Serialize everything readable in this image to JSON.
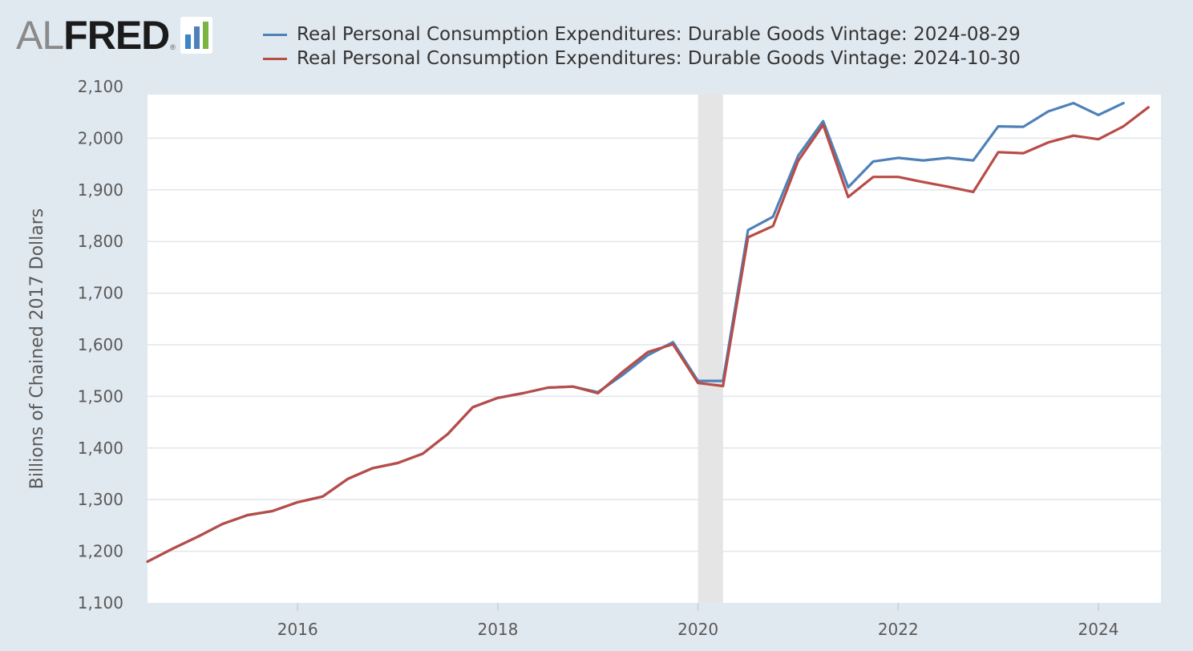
{
  "logo": {
    "al": "AL",
    "fred": "FRED",
    "reg": "®",
    "icon": "fred-bar-chart-icon"
  },
  "colors": {
    "background": "#e1e9f0",
    "plot_background": "#ffffff",
    "gridline": "#e1e5ea",
    "recession_band": "#e5e5e5",
    "series_1": "#4e81b8",
    "series_2": "#b84c47"
  },
  "chart_data": {
    "type": "line",
    "title": "",
    "xlabel": "",
    "ylabel": "Billions of Chained 2017 Dollars",
    "ylim": [
      1100,
      2100
    ],
    "xlim": [
      2014.5,
      2024.625
    ],
    "grid": true,
    "legend_position": "top",
    "y_ticks": [
      1100,
      1200,
      1300,
      1400,
      1500,
      1600,
      1700,
      1800,
      1900,
      2000,
      2100
    ],
    "y_tick_labels": [
      "1,100",
      "1,200",
      "1,300",
      "1,400",
      "1,500",
      "1,600",
      "1,700",
      "1,800",
      "1,900",
      "2,000",
      "2,100"
    ],
    "x_ticks": [
      2016,
      2018,
      2020,
      2022,
      2024
    ],
    "x_tick_labels": [
      "2016",
      "2018",
      "2020",
      "2022",
      "2024"
    ],
    "recession": {
      "start": 2020.0,
      "end": 2020.25
    },
    "series": [
      {
        "name": "Real Personal Consumption Expenditures: Durable Goods Vintage: 2024-08-29",
        "color": "#4e81b8",
        "x": [
          2014.5,
          2014.75,
          2015.0,
          2015.25,
          2015.5,
          2015.75,
          2016.0,
          2016.25,
          2016.5,
          2016.75,
          2017.0,
          2017.25,
          2017.5,
          2017.75,
          2018.0,
          2018.25,
          2018.5,
          2018.75,
          2019.0,
          2019.25,
          2019.5,
          2019.75,
          2020.0,
          2020.25,
          2020.5,
          2020.75,
          2021.0,
          2021.25,
          2021.5,
          2021.75,
          2022.0,
          2022.25,
          2022.5,
          2022.75,
          2023.0,
          2023.25,
          2023.5,
          2023.75,
          2024.0,
          2024.25
        ],
        "values": [
          1180,
          1205,
          1228,
          1253,
          1270,
          1278,
          1295,
          1306,
          1340,
          1361,
          1371,
          1389,
          1427,
          1479,
          1497,
          1506,
          1517,
          1519,
          1508,
          1542,
          1580,
          1605,
          1530,
          1530,
          1822,
          1848,
          1966,
          2033,
          1905,
          1955,
          1962,
          1957,
          1962,
          1957,
          2023,
          2022,
          2052,
          2068,
          2045,
          2068
        ]
      },
      {
        "name": "Real Personal Consumption Expenditures: Durable Goods Vintage: 2024-10-30",
        "color": "#b84c47",
        "x": [
          2014.5,
          2014.75,
          2015.0,
          2015.25,
          2015.5,
          2015.75,
          2016.0,
          2016.25,
          2016.5,
          2016.75,
          2017.0,
          2017.25,
          2017.5,
          2017.75,
          2018.0,
          2018.25,
          2018.5,
          2018.75,
          2019.0,
          2019.25,
          2019.5,
          2019.75,
          2020.0,
          2020.25,
          2020.5,
          2020.75,
          2021.0,
          2021.25,
          2021.5,
          2021.75,
          2022.0,
          2022.25,
          2022.5,
          2022.75,
          2023.0,
          2023.25,
          2023.5,
          2023.75,
          2024.0,
          2024.25,
          2024.5
        ],
        "values": [
          1180,
          1205,
          1228,
          1253,
          1270,
          1278,
          1295,
          1306,
          1340,
          1361,
          1371,
          1389,
          1427,
          1479,
          1497,
          1506,
          1517,
          1519,
          1506,
          1548,
          1586,
          1601,
          1526,
          1520,
          1808,
          1830,
          1956,
          2026,
          1886,
          1925,
          1925,
          1915,
          1906,
          1896,
          1973,
          1971,
          1992,
          2005,
          1998,
          2023,
          2060
        ]
      }
    ]
  }
}
